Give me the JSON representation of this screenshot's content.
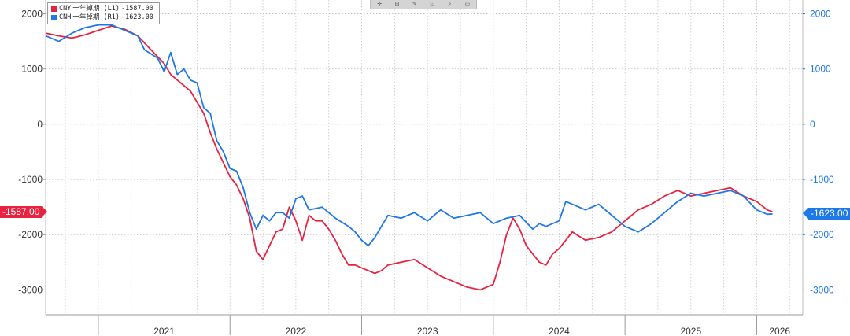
{
  "toolbar": {
    "icons": [
      "move-icon",
      "zoom-in-icon",
      "draw-icon",
      "annotate-icon",
      "zoom-icon",
      "reset-icon"
    ]
  },
  "legend": [
    {
      "name": "CNY",
      "label": "一年掉期 (L1)",
      "value": "-1587.00",
      "color": "#e8223f"
    },
    {
      "name": "CNH",
      "label": "一年掉期 (R1)",
      "value": "-1623.00",
      "color": "#1e78e6"
    }
  ],
  "price_tags": {
    "left": "-1587.00",
    "right": "-1623.00"
  },
  "chart_data": {
    "type": "line",
    "title": "",
    "xlabel": "",
    "ylabel": "",
    "x_ticks": [
      "2021",
      "2022",
      "2023",
      "2024",
      "2025",
      "2026"
    ],
    "x_range": [
      2020.6,
      2026.35
    ],
    "y_left": {
      "ticks": [
        "2000",
        "1000",
        "0",
        "-1000",
        "-2000",
        "-3000"
      ],
      "range": [
        -3450,
        2250
      ],
      "color": "#333333"
    },
    "y_right": {
      "ticks": [
        "2000",
        "1000",
        "0",
        "-1000",
        "-2000",
        "-3000"
      ],
      "range": [
        -3450,
        2250
      ],
      "color": "#1e78e6"
    },
    "grid": true,
    "legend_position": "top-left",
    "series": [
      {
        "name": "CNY",
        "axis": "left",
        "color": "#e8223f",
        "x": [
          2020.6,
          2020.7,
          2020.8,
          2020.9,
          2021.0,
          2021.1,
          2021.2,
          2021.3,
          2021.4,
          2021.5,
          2021.55,
          2021.6,
          2021.7,
          2021.8,
          2021.85,
          2021.9,
          2021.95,
          2022.0,
          2022.05,
          2022.1,
          2022.15,
          2022.2,
          2022.25,
          2022.3,
          2022.35,
          2022.4,
          2022.45,
          2022.5,
          2022.55,
          2022.6,
          2022.65,
          2022.7,
          2022.75,
          2022.8,
          2022.85,
          2022.9,
          2022.95,
          2023.0,
          2023.05,
          2023.1,
          2023.15,
          2023.2,
          2023.3,
          2023.4,
          2023.5,
          2023.6,
          2023.7,
          2023.8,
          2023.9,
          2024.0,
          2024.05,
          2024.1,
          2024.15,
          2024.2,
          2024.25,
          2024.3,
          2024.35,
          2024.4,
          2024.45,
          2024.5,
          2024.55,
          2024.6,
          2024.7,
          2024.8,
          2024.9,
          2025.0,
          2025.1,
          2025.2,
          2025.3,
          2025.4,
          2025.5,
          2025.6,
          2025.7,
          2025.8,
          2025.9,
          2026.0,
          2026.08,
          2026.12
        ],
        "y": [
          1650,
          1600,
          1560,
          1620,
          1700,
          1780,
          1720,
          1600,
          1350,
          1100,
          900,
          800,
          600,
          200,
          -150,
          -450,
          -700,
          -950,
          -1100,
          -1350,
          -1700,
          -2300,
          -2450,
          -2200,
          -1950,
          -1900,
          -1500,
          -1750,
          -2100,
          -1650,
          -1750,
          -1750,
          -1900,
          -2100,
          -2350,
          -2550,
          -2550,
          -2600,
          -2650,
          -2700,
          -2650,
          -2550,
          -2500,
          -2450,
          -2600,
          -2750,
          -2850,
          -2950,
          -3000,
          -2900,
          -2500,
          -2000,
          -1700,
          -1900,
          -2200,
          -2350,
          -2500,
          -2550,
          -2350,
          -2250,
          -2100,
          -1950,
          -2100,
          -2050,
          -1950,
          -1750,
          -1550,
          -1450,
          -1300,
          -1200,
          -1300,
          -1250,
          -1200,
          -1150,
          -1300,
          -1400,
          -1550,
          -1587
        ]
      },
      {
        "name": "CNH",
        "axis": "right",
        "color": "#1e78e6",
        "x": [
          2020.6,
          2020.7,
          2020.8,
          2020.9,
          2021.0,
          2021.1,
          2021.2,
          2021.3,
          2021.35,
          2021.45,
          2021.5,
          2021.55,
          2021.6,
          2021.65,
          2021.7,
          2021.75,
          2021.8,
          2021.85,
          2021.9,
          2021.95,
          2022.0,
          2022.05,
          2022.1,
          2022.15,
          2022.2,
          2022.25,
          2022.3,
          2022.35,
          2022.4,
          2022.45,
          2022.5,
          2022.55,
          2022.6,
          2022.7,
          2022.75,
          2022.8,
          2022.9,
          2022.95,
          2023.0,
          2023.05,
          2023.1,
          2023.15,
          2023.2,
          2023.3,
          2023.4,
          2023.5,
          2023.6,
          2023.7,
          2023.8,
          2023.9,
          2024.0,
          2024.1,
          2024.2,
          2024.3,
          2024.35,
          2024.4,
          2024.5,
          2024.55,
          2024.6,
          2024.7,
          2024.8,
          2024.9,
          2025.0,
          2025.1,
          2025.2,
          2025.3,
          2025.4,
          2025.5,
          2025.6,
          2025.7,
          2025.8,
          2025.9,
          2026.0,
          2026.08,
          2026.12
        ],
        "y": [
          1600,
          1500,
          1650,
          1750,
          1800,
          1800,
          1700,
          1600,
          1350,
          1200,
          950,
          1300,
          900,
          1000,
          800,
          750,
          300,
          200,
          -300,
          -500,
          -800,
          -850,
          -1150,
          -1600,
          -1900,
          -1650,
          -1750,
          -1600,
          -1600,
          -1700,
          -1350,
          -1300,
          -1550,
          -1500,
          -1600,
          -1700,
          -1850,
          -1950,
          -2100,
          -2200,
          -2050,
          -1850,
          -1650,
          -1700,
          -1600,
          -1750,
          -1550,
          -1700,
          -1650,
          -1600,
          -1800,
          -1700,
          -1650,
          -1900,
          -1800,
          -1850,
          -1750,
          -1400,
          -1450,
          -1550,
          -1450,
          -1650,
          -1850,
          -1950,
          -1800,
          -1600,
          -1400,
          -1250,
          -1300,
          -1250,
          -1200,
          -1300,
          -1550,
          -1630,
          -1623
        ]
      }
    ]
  }
}
